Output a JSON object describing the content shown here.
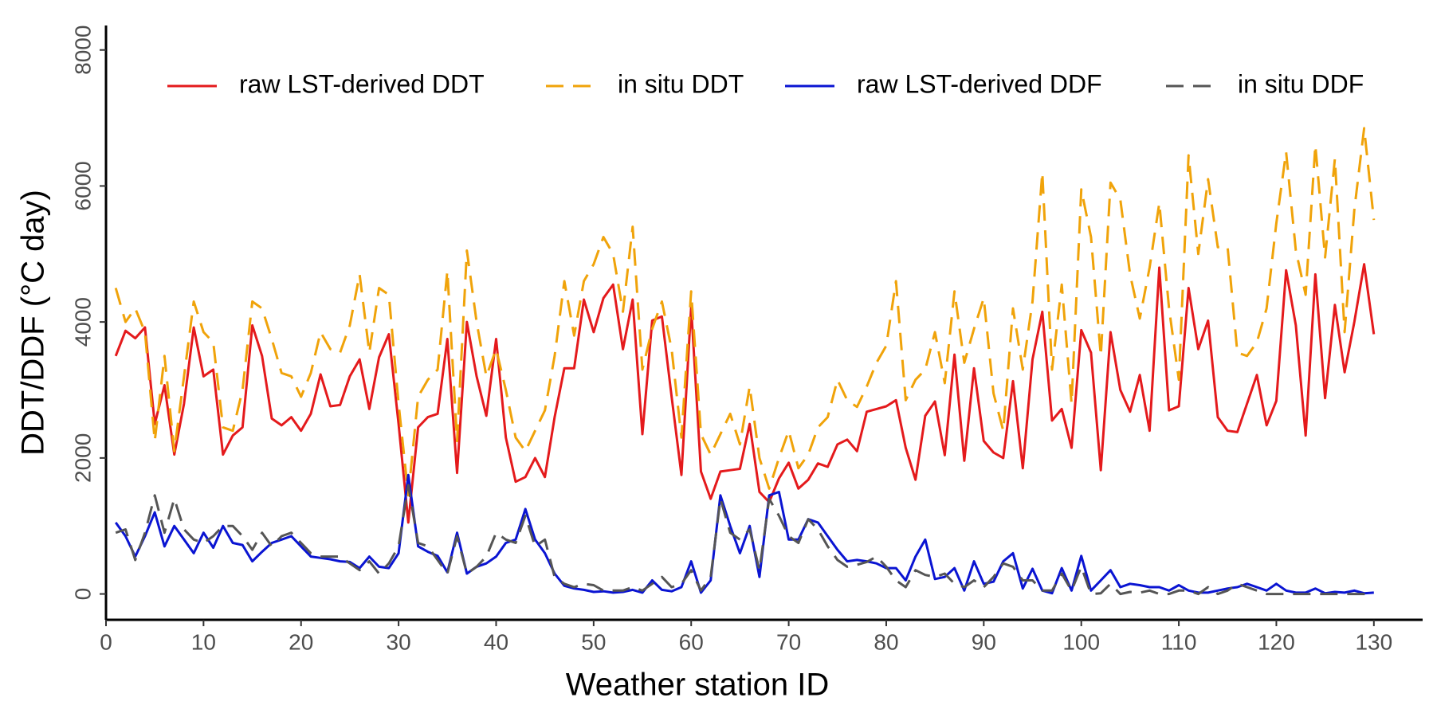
{
  "chart_data": {
    "type": "line",
    "xlabel": "Weather station ID",
    "ylabel": "DDT/DDF (°C day)",
    "legend": "top",
    "grid": false,
    "x": [
      1,
      2,
      3,
      4,
      5,
      6,
      7,
      8,
      9,
      10,
      11,
      12,
      13,
      14,
      15,
      16,
      17,
      18,
      19,
      20,
      21,
      22,
      23,
      24,
      25,
      26,
      27,
      28,
      29,
      30,
      31,
      32,
      33,
      34,
      35,
      36,
      37,
      38,
      39,
      40,
      41,
      42,
      43,
      44,
      45,
      46,
      47,
      48,
      49,
      50,
      51,
      52,
      53,
      54,
      55,
      56,
      57,
      58,
      59,
      60,
      61,
      62,
      63,
      64,
      65,
      66,
      67,
      68,
      69,
      70,
      71,
      72,
      73,
      74,
      75,
      76,
      77,
      78,
      79,
      80,
      81,
      82,
      83,
      84,
      85,
      86,
      87,
      88,
      89,
      90,
      91,
      92,
      93,
      94,
      95,
      96,
      97,
      98,
      99,
      100,
      101,
      102,
      103,
      104,
      105,
      106,
      107,
      108,
      109,
      110,
      111,
      112,
      113,
      114,
      115,
      116,
      117,
      118,
      119,
      120,
      121,
      122,
      123,
      124,
      125,
      126,
      127,
      128,
      129,
      130
    ],
    "xlim": [
      0,
      135
    ],
    "xticks": [
      0,
      10,
      20,
      30,
      40,
      50,
      60,
      70,
      80,
      90,
      100,
      110,
      120,
      130
    ],
    "ylim": [
      -380,
      8360
    ],
    "yticks": [
      0,
      2000,
      4000,
      6000,
      8000
    ],
    "series": [
      {
        "name": "raw LST-derived DDT",
        "color": "#e41a1c",
        "dash": "solid",
        "values": [
          3500,
          3870,
          3760,
          3920,
          2500,
          3070,
          2050,
          2800,
          3920,
          3200,
          3300,
          2050,
          2330,
          2450,
          3950,
          3500,
          2580,
          2480,
          2600,
          2400,
          2650,
          3230,
          2760,
          2780,
          3200,
          3450,
          2720,
          3480,
          3820,
          2500,
          1050,
          2450,
          2600,
          2650,
          3750,
          1780,
          4000,
          3200,
          2620,
          3750,
          2300,
          1650,
          1720,
          2000,
          1720,
          2600,
          3320,
          3320,
          4330,
          3850,
          4350,
          4550,
          3600,
          4330,
          2350,
          4020,
          4080,
          2900,
          1750,
          4220,
          1800,
          1400,
          1800,
          1820,
          1840,
          2500,
          1500,
          1350,
          1700,
          1930,
          1550,
          1680,
          1920,
          1870,
          2200,
          2270,
          2100,
          2680,
          2720,
          2760,
          2850,
          2150,
          1680,
          2620,
          2830,
          2040,
          3520,
          1960,
          3320,
          2250,
          2080,
          2000,
          3130,
          1850,
          3450,
          4150,
          2550,
          2720,
          2150,
          3880,
          3550,
          1820,
          3850,
          3000,
          2680,
          3220,
          2400,
          4800,
          2700,
          2760,
          4500,
          3600,
          4020,
          2600,
          2400,
          2380,
          2800,
          3220,
          2480,
          2840,
          4760,
          3950,
          2330,
          4700,
          2880,
          4250,
          3260,
          4000,
          4850,
          3820
        ]
      },
      {
        "name": "in situ DDT",
        "color": "#f0a30a",
        "dash": "dashed",
        "values": [
          4500,
          4000,
          4200,
          3850,
          2250,
          3500,
          2100,
          3200,
          4300,
          3850,
          3700,
          2450,
          2400,
          3000,
          4300,
          4200,
          3750,
          3250,
          3200,
          2900,
          3250,
          3850,
          3600,
          3550,
          3950,
          4700,
          3550,
          4500,
          4400,
          2800,
          1450,
          2900,
          3150,
          3300,
          4750,
          2250,
          5050,
          4000,
          3200,
          3600,
          3000,
          2300,
          2100,
          2400,
          2700,
          3500,
          4600,
          3800,
          4600,
          4850,
          5250,
          5000,
          4150,
          5400,
          3300,
          3900,
          4300,
          3600,
          2300,
          4450,
          2350,
          2050,
          2350,
          2650,
          2200,
          3050,
          2000,
          1550,
          2000,
          2400,
          1850,
          2050,
          2450,
          2600,
          3150,
          2850,
          2750,
          3050,
          3400,
          3650,
          4600,
          2850,
          3150,
          3300,
          3850,
          3100,
          4450,
          3400,
          3900,
          4350,
          2950,
          2400,
          4200,
          3300,
          4300,
          6200,
          3300,
          4550,
          2800,
          5950,
          5250,
          3500,
          6050,
          5800,
          4700,
          4050,
          4800,
          5750,
          4200,
          3150,
          6450,
          5000,
          6100,
          5100,
          5100,
          3550,
          3500,
          3700,
          4200,
          5450,
          6500,
          5050,
          4400,
          6600,
          4950,
          6400,
          3850,
          5650,
          6850,
          5500
        ]
      },
      {
        "name": "raw LST-derived DDF",
        "color": "#0a14d2",
        "dash": "solid",
        "values": [
          1050,
          850,
          550,
          850,
          1200,
          700,
          1000,
          800,
          600,
          900,
          680,
          1000,
          750,
          720,
          480,
          620,
          750,
          800,
          850,
          700,
          550,
          530,
          510,
          480,
          470,
          380,
          550,
          400,
          380,
          600,
          1750,
          700,
          620,
          560,
          320,
          900,
          300,
          400,
          450,
          550,
          750,
          800,
          1250,
          800,
          600,
          300,
          120,
          80,
          60,
          30,
          40,
          20,
          30,
          60,
          20,
          200,
          60,
          40,
          100,
          480,
          20,
          200,
          1450,
          1000,
          600,
          1000,
          250,
          1450,
          1500,
          800,
          800,
          1100,
          1050,
          850,
          650,
          480,
          500,
          480,
          450,
          380,
          380,
          200,
          550,
          800,
          220,
          250,
          380,
          50,
          480,
          150,
          180,
          480,
          600,
          80,
          370,
          50,
          10,
          380,
          50,
          560,
          50,
          200,
          350,
          100,
          150,
          130,
          100,
          100,
          50,
          130,
          50,
          20,
          20,
          50,
          80,
          100,
          150,
          100,
          50,
          150,
          50,
          20,
          20,
          80,
          10,
          30,
          20,
          50,
          10,
          20
        ]
      },
      {
        "name": "in situ DDF",
        "color": "#555555",
        "dash": "dashed",
        "values": [
          900,
          950,
          500,
          900,
          1450,
          900,
          1400,
          950,
          800,
          750,
          850,
          1000,
          1000,
          850,
          650,
          900,
          700,
          850,
          900,
          750,
          600,
          550,
          550,
          550,
          450,
          350,
          480,
          300,
          450,
          700,
          1600,
          750,
          700,
          500,
          300,
          850,
          300,
          400,
          550,
          900,
          800,
          750,
          1150,
          700,
          800,
          250,
          150,
          100,
          150,
          130,
          50,
          50,
          50,
          100,
          50,
          150,
          250,
          100,
          150,
          350,
          50,
          250,
          1400,
          900,
          800,
          950,
          350,
          1400,
          1150,
          850,
          750,
          1100,
          950,
          700,
          500,
          400,
          430,
          470,
          550,
          400,
          200,
          100,
          350,
          280,
          250,
          300,
          150,
          100,
          200,
          100,
          250,
          450,
          400,
          200,
          200,
          50,
          50,
          300,
          50,
          400,
          0,
          10,
          150,
          0,
          30,
          20,
          50,
          0,
          0,
          50,
          50,
          0,
          100,
          0,
          50,
          150,
          100,
          50,
          0,
          0,
          0,
          0,
          0,
          0,
          0,
          0,
          0,
          0,
          0,
          0
        ]
      }
    ]
  }
}
